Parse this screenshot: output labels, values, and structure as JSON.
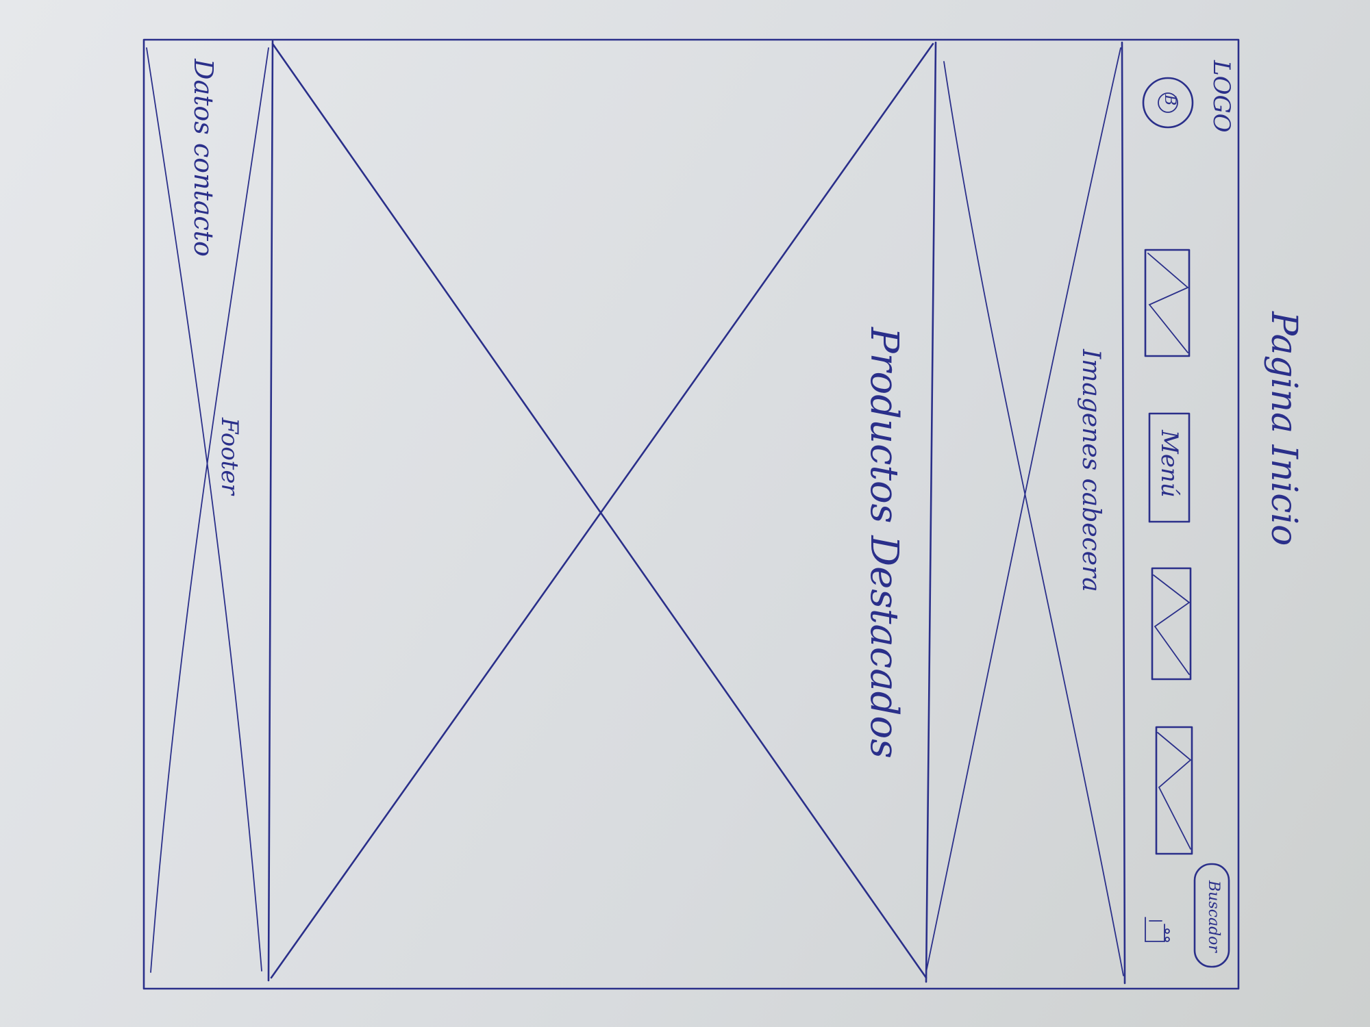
{
  "page_title": "Pagina Inicio",
  "logo": {
    "label": "LOGO",
    "badge": "B"
  },
  "nav": {
    "menu_label": "Menú",
    "image_slot_icon": "image-placeholder-icon"
  },
  "search": {
    "label": "Buscador"
  },
  "cart": {
    "icon": "cart-icon"
  },
  "sections": {
    "header_banner": "Imagenes cabecera",
    "featured": "Productos Destacados",
    "footer": "Footer",
    "contact": "Datos contacto"
  },
  "colors": {
    "ink": "#2a2f8a",
    "paper": "#e2e5e8"
  }
}
